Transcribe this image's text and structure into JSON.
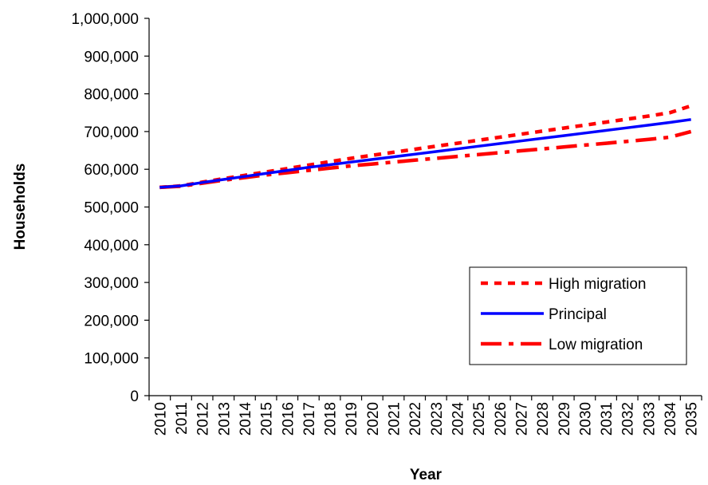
{
  "chart_data": {
    "type": "line",
    "xlabel": "Year",
    "ylabel": "Households",
    "ylim": [
      0,
      1000000
    ],
    "yticks": [
      "0",
      "100,000",
      "200,000",
      "300,000",
      "400,000",
      "500,000",
      "600,000",
      "700,000",
      "800,000",
      "900,000",
      "1,000,000"
    ],
    "x": [
      "2010",
      "2011",
      "2012",
      "2013",
      "2014",
      "2015",
      "2016",
      "2017",
      "2018",
      "2019",
      "2020",
      "2021",
      "2022",
      "2023",
      "2024",
      "2025",
      "2026",
      "2027",
      "2028",
      "2029",
      "2030",
      "2031",
      "2032",
      "2033",
      "2034",
      "2035"
    ],
    "grid": false,
    "legend_position": "bottom-right",
    "series": [
      {
        "name": "High migration",
        "color": "#ff0000",
        "style": "dotted",
        "values": [
          552000,
          556000,
          566000,
          575000,
          584000,
          593000,
          602000,
          611000,
          620000,
          629000,
          637000,
          645000,
          653000,
          661000,
          669000,
          677000,
          685000,
          693000,
          701000,
          709000,
          717000,
          725000,
          733000,
          741000,
          750000,
          768000
        ]
      },
      {
        "name": "Principal",
        "color": "#0000ff",
        "style": "solid",
        "values": [
          552000,
          556000,
          565000,
          573000,
          581000,
          589000,
          597000,
          605000,
          612000,
          619000,
          626000,
          633000,
          640000,
          647000,
          654000,
          661000,
          668000,
          675000,
          682000,
          689000,
          696000,
          703000,
          710000,
          717000,
          724000,
          732000
        ]
      },
      {
        "name": "Low migration",
        "color": "#ff0000",
        "style": "dash-dot",
        "values": [
          552000,
          555000,
          563000,
          571000,
          578000,
          585000,
          591000,
          597000,
          603000,
          609000,
          614000,
          619000,
          624000,
          629000,
          634000,
          639000,
          644000,
          649000,
          654000,
          659000,
          664000,
          669000,
          674000,
          679000,
          685000,
          700000
        ]
      }
    ]
  }
}
